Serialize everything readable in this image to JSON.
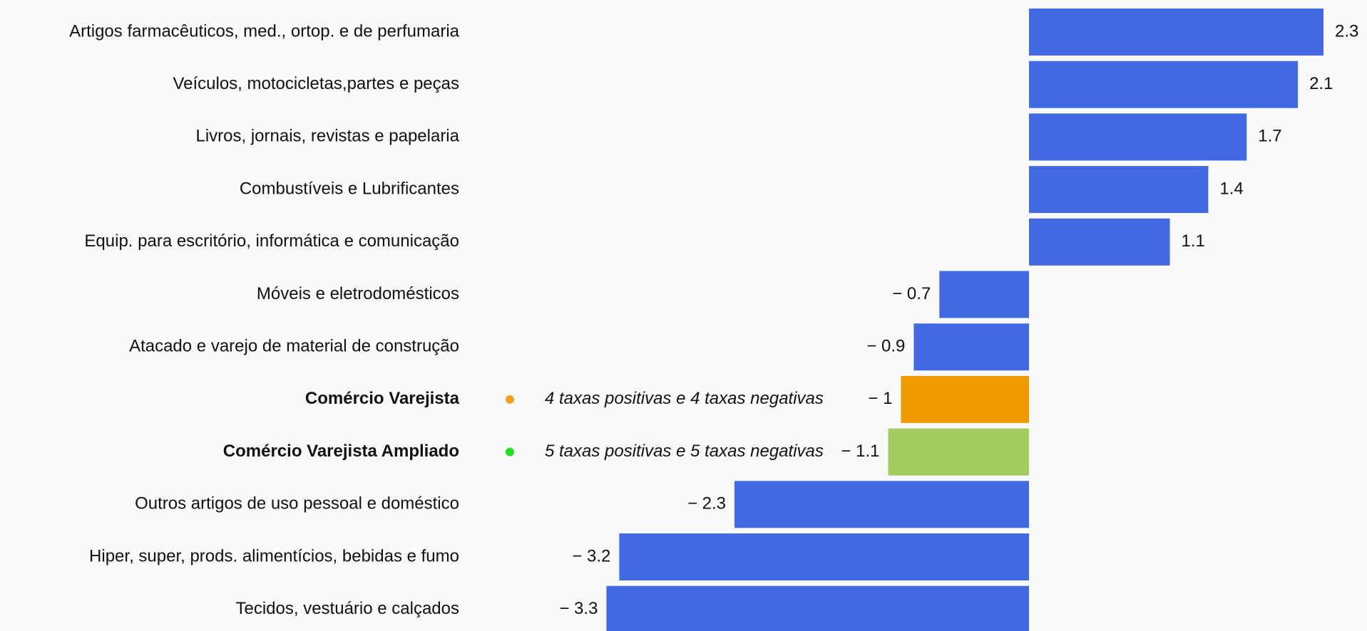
{
  "chart_data": {
    "type": "barh",
    "categories": [
      "Artigos farmacêuticos, med., ortop. e de perfumaria",
      "Veículos, motocicletas,partes e peças",
      "Livros, jornais, revistas e papelaria",
      "Combustíveis e Lubrificantes",
      "Equip. para escritório, informática e comunicação",
      "Móveis e eletrodomésticos",
      "Atacado e varejo de material de construção",
      "Comércio Varejista",
      "Comércio Varejista Ampliado",
      "Outros artigos de uso pessoal e doméstico",
      "Hiper, super, prods.  alimentícios, bebidas e fumo",
      "Tecidos, vestuário e calçados"
    ],
    "values": [
      2.3,
      2.1,
      1.7,
      1.4,
      1.1,
      -0.7,
      -0.9,
      -1,
      -1.1,
      -2.3,
      -3.2,
      -3.3
    ],
    "value_labels": [
      "2.3",
      "2.1",
      "1.7",
      "1.4",
      "1.1",
      "− 0.7",
      "− 0.9",
      "− 1",
      "− 1.1",
      "− 2.3",
      "− 3.2",
      "− 3.3"
    ],
    "colors": [
      "#4169e1",
      "#4169e1",
      "#4169e1",
      "#4169e1",
      "#4169e1",
      "#4169e1",
      "#4169e1",
      "#f09a00",
      "#a2cd5e",
      "#4169e1",
      "#4169e1",
      "#4169e1"
    ],
    "annotations": [
      {
        "category": "Comércio Varejista",
        "text": "4 taxas positivas e 4 taxas negativas",
        "color": "#f0a020"
      },
      {
        "category": "Comércio Varejista Ampliado",
        "text": "5 taxas positivas e 5 taxas negativas",
        "color": "#22dd22"
      }
    ]
  }
}
